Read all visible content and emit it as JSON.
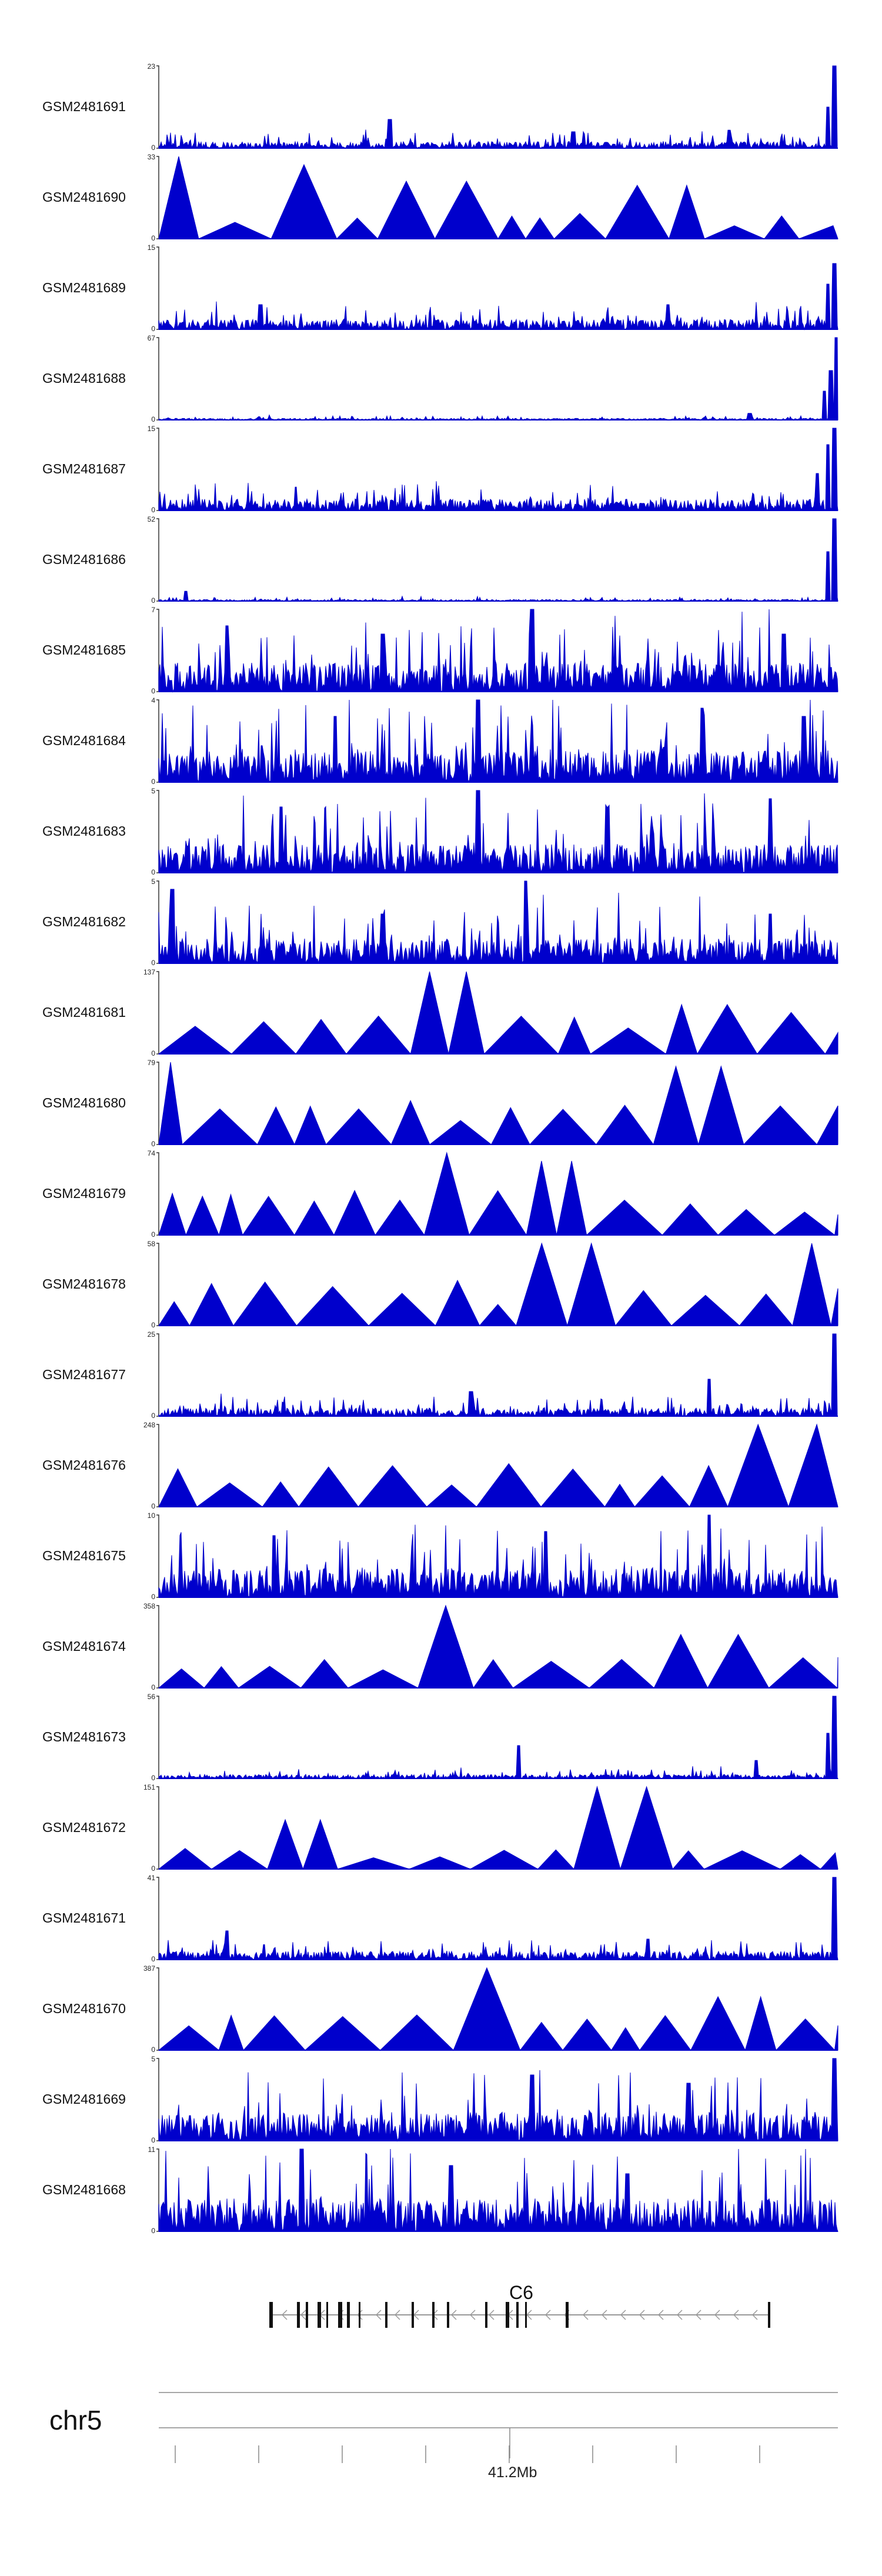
{
  "chart_data": {
    "type": "area",
    "color": "#0000cc",
    "x_range": [
      40880000,
      41700000
    ],
    "tracks": [
      {
        "name": "GSM2481691",
        "ymax": "23",
        "ymin": "0",
        "pattern": "dense",
        "max": 23,
        "base": 0.08,
        "spikes": [
          [
            0.34,
            0.35
          ],
          [
            0.61,
            0.2
          ],
          [
            0.995,
            1.0
          ],
          [
            0.985,
            0.5
          ],
          [
            0.84,
            0.22
          ]
        ]
      },
      {
        "name": "GSM2481690",
        "ymax": "33",
        "ymin": "0",
        "pattern": "tri",
        "max": 33,
        "base": 0.3,
        "spikes": [
          [
            0.03,
            1.0
          ],
          [
            0.22,
            0.9
          ],
          [
            0.41,
            0.7
          ],
          [
            0.18,
            0.6
          ],
          [
            0.73,
            0.65
          ]
        ]
      },
      {
        "name": "GSM2481689",
        "ymax": "15",
        "ymin": "0",
        "pattern": "dense",
        "max": 15,
        "base": 0.12,
        "spikes": [
          [
            0.995,
            0.8
          ],
          [
            0.985,
            0.55
          ],
          [
            0.75,
            0.3
          ],
          [
            0.15,
            0.3
          ]
        ]
      },
      {
        "name": "GSM2481688",
        "ymax": "67",
        "ymin": "0",
        "pattern": "dense",
        "max": 67,
        "base": 0.02,
        "spikes": [
          [
            0.998,
            1.0
          ],
          [
            0.99,
            0.6
          ],
          [
            0.98,
            0.35
          ],
          [
            0.87,
            0.08
          ]
        ]
      },
      {
        "name": "GSM2481687",
        "ymax": "15",
        "ymin": "0",
        "pattern": "dense",
        "max": 15,
        "base": 0.14,
        "spikes": [
          [
            0.995,
            1.0
          ],
          [
            0.985,
            0.8
          ],
          [
            0.97,
            0.45
          ]
        ]
      },
      {
        "name": "GSM2481686",
        "ymax": "52",
        "ymin": "0",
        "pattern": "dense",
        "max": 52,
        "base": 0.02,
        "spikes": [
          [
            0.995,
            1.0
          ],
          [
            0.985,
            0.6
          ],
          [
            0.04,
            0.12
          ]
        ]
      },
      {
        "name": "GSM2481685",
        "ymax": "7",
        "ymin": "0",
        "pattern": "dense",
        "max": 7,
        "base": 0.35,
        "spikes": [
          [
            0.55,
            1.0
          ],
          [
            0.1,
            0.8
          ],
          [
            0.33,
            0.7
          ],
          [
            0.92,
            0.7
          ]
        ]
      },
      {
        "name": "GSM2481684",
        "ymax": "4",
        "ymin": "0",
        "pattern": "dense",
        "max": 4,
        "base": 0.4,
        "spikes": [
          [
            0.47,
            1.0
          ],
          [
            0.8,
            0.9
          ],
          [
            0.26,
            0.8
          ],
          [
            0.95,
            0.8
          ]
        ]
      },
      {
        "name": "GSM2481683",
        "ymax": "5",
        "ymin": "0",
        "pattern": "dense",
        "max": 5,
        "base": 0.35,
        "spikes": [
          [
            0.47,
            1.0
          ],
          [
            0.9,
            0.9
          ],
          [
            0.18,
            0.8
          ],
          [
            0.66,
            0.8
          ]
        ]
      },
      {
        "name": "GSM2481682",
        "ymax": "5",
        "ymin": "0",
        "pattern": "dense",
        "max": 5,
        "base": 0.3,
        "spikes": [
          [
            0.54,
            1.0
          ],
          [
            0.02,
            0.9
          ],
          [
            0.33,
            0.6
          ],
          [
            0.9,
            0.6
          ]
        ]
      },
      {
        "name": "GSM2481681",
        "ymax": "137",
        "ymin": "0",
        "pattern": "tri",
        "max": 137,
        "base": 0.5,
        "spikes": [
          [
            0.43,
            1.0
          ],
          [
            0.8,
            0.6
          ]
        ]
      },
      {
        "name": "GSM2481680",
        "ymax": "79",
        "ymin": "0",
        "pattern": "tri",
        "max": 79,
        "base": 0.5,
        "spikes": [
          [
            0.0,
            1.0
          ],
          [
            0.78,
            0.95
          ]
        ]
      },
      {
        "name": "GSM2481679",
        "ymax": "74",
        "ymin": "0",
        "pattern": "tri",
        "max": 74,
        "base": 0.5,
        "spikes": [
          [
            0.43,
            1.0
          ],
          [
            0.56,
            0.9
          ]
        ]
      },
      {
        "name": "GSM2481678",
        "ymax": "58",
        "ymin": "0",
        "pattern": "tri",
        "max": 58,
        "base": 0.5,
        "spikes": [
          [
            0.59,
            1.0
          ],
          [
            0.95,
            1.0
          ]
        ]
      },
      {
        "name": "GSM2481677",
        "ymax": "25",
        "ymin": "0",
        "pattern": "dense",
        "max": 25,
        "base": 0.1,
        "spikes": [
          [
            0.995,
            1.0
          ],
          [
            0.81,
            0.45
          ],
          [
            0.46,
            0.3
          ]
        ]
      },
      {
        "name": "GSM2481676",
        "ymax": "248",
        "ymin": "0",
        "pattern": "tri",
        "max": 248,
        "base": 0.5,
        "spikes": [
          [
            0.93,
            1.0
          ],
          [
            0.37,
            0.5
          ],
          [
            0.82,
            0.5
          ]
        ]
      },
      {
        "name": "GSM2481675",
        "ymax": "10",
        "ymin": "0",
        "pattern": "dense",
        "max": 10,
        "base": 0.35,
        "spikes": [
          [
            0.81,
            1.0
          ],
          [
            0.57,
            0.8
          ],
          [
            0.17,
            0.75
          ]
        ]
      },
      {
        "name": "GSM2481674",
        "ymax": "358",
        "ymin": "0",
        "pattern": "tri",
        "max": 358,
        "base": 0.35,
        "spikes": [
          [
            0.41,
            1.0
          ],
          [
            0.81,
            0.65
          ]
        ]
      },
      {
        "name": "GSM2481673",
        "ymax": "56",
        "ymin": "0",
        "pattern": "dense",
        "max": 56,
        "base": 0.05,
        "spikes": [
          [
            0.995,
            1.0
          ],
          [
            0.985,
            0.55
          ],
          [
            0.53,
            0.4
          ],
          [
            0.88,
            0.22
          ]
        ]
      },
      {
        "name": "GSM2481672",
        "ymax": "151",
        "ymin": "0",
        "pattern": "tri",
        "max": 151,
        "base": 0.25,
        "spikes": [
          [
            0.67,
            1.0
          ],
          [
            0.21,
            0.6
          ]
        ]
      },
      {
        "name": "GSM2481671",
        "ymax": "41",
        "ymin": "0",
        "pattern": "dense",
        "max": 41,
        "base": 0.1,
        "spikes": [
          [
            0.995,
            1.0
          ],
          [
            0.1,
            0.35
          ],
          [
            0.72,
            0.25
          ]
        ]
      },
      {
        "name": "GSM2481670",
        "ymax": "387",
        "ymin": "0",
        "pattern": "tri",
        "max": 387,
        "base": 0.4,
        "spikes": [
          [
            0.46,
            1.0
          ],
          [
            0.84,
            0.65
          ]
        ]
      },
      {
        "name": "GSM2481669",
        "ymax": "5",
        "ymin": "0",
        "pattern": "dense",
        "max": 5,
        "base": 0.35,
        "spikes": [
          [
            0.995,
            1.0
          ],
          [
            0.55,
            0.8
          ],
          [
            0.78,
            0.7
          ]
        ]
      },
      {
        "name": "GSM2481668",
        "ymax": "11",
        "ymin": "0",
        "pattern": "dense",
        "max": 11,
        "base": 0.4,
        "spikes": [
          [
            0.21,
            1.0
          ],
          [
            0.43,
            0.8
          ],
          [
            0.69,
            0.7
          ]
        ]
      }
    ],
    "gene": {
      "name": "C6",
      "strand": "-"
    },
    "chromosome": "chr5",
    "axis_label": "41.2Mb"
  }
}
